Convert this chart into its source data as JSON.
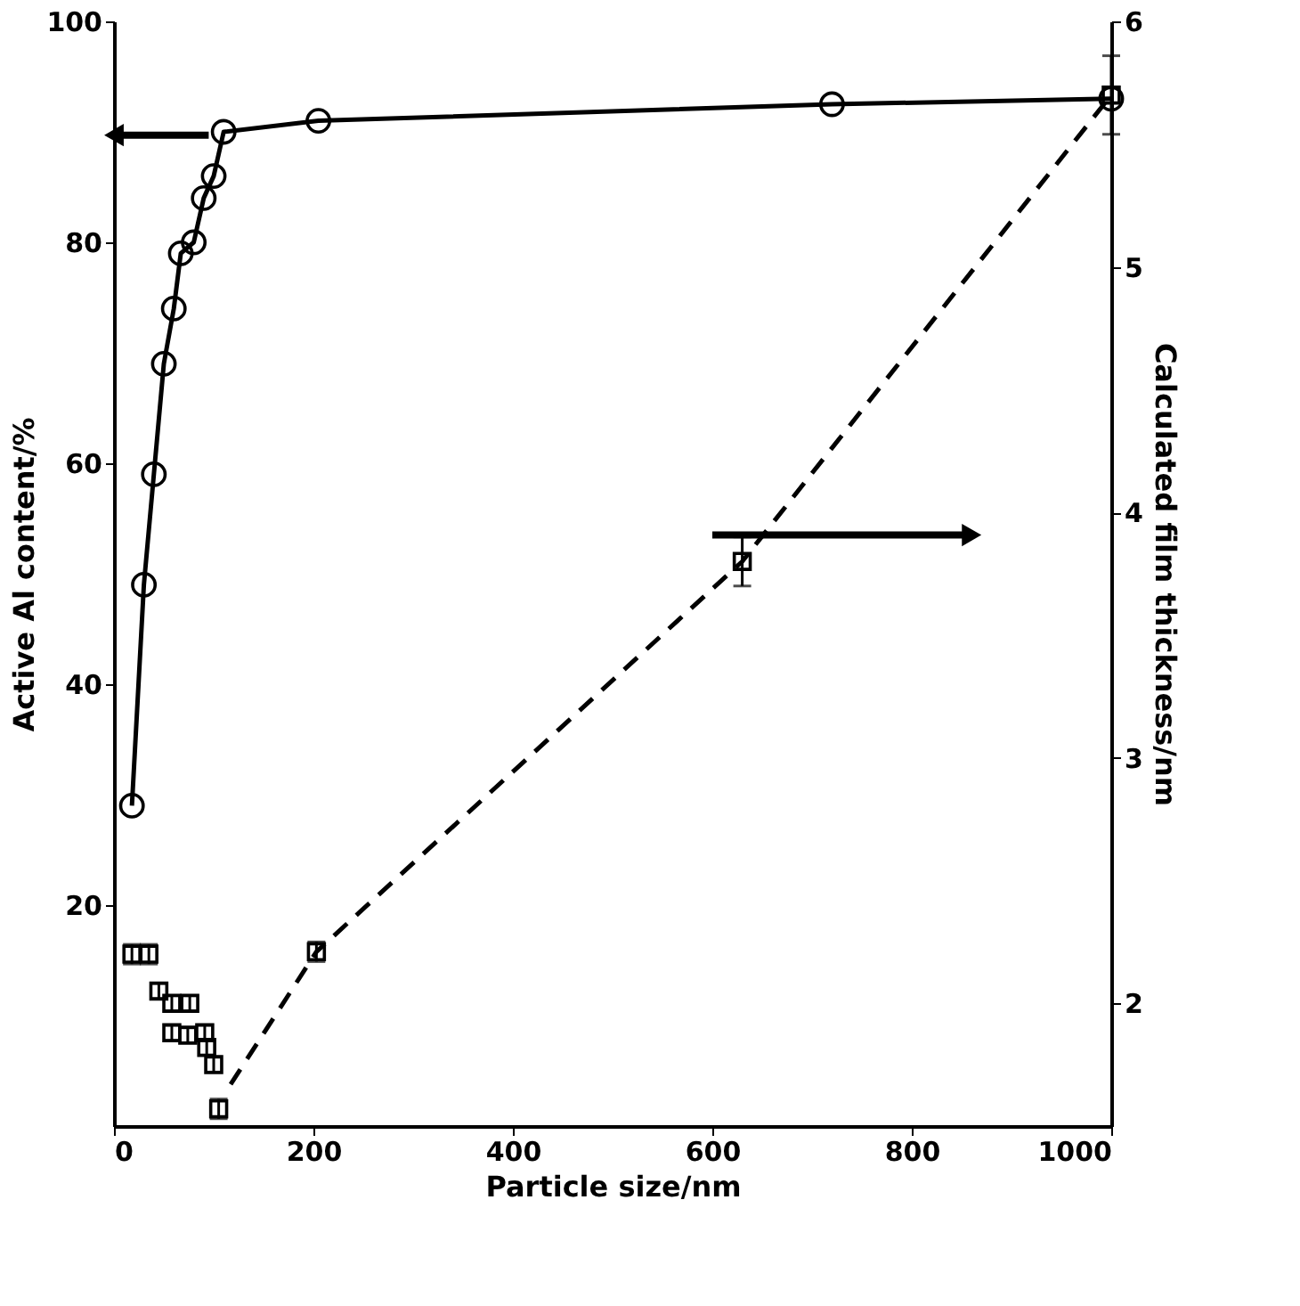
{
  "chart_data": {
    "type": "line",
    "xlabel": "Particle size/nm",
    "ylabel": "Active Al content/%",
    "y2label": "Calculated film thickness/nm",
    "xlim": [
      0,
      1000
    ],
    "xticks": [
      0,
      200,
      400,
      600,
      800,
      1000
    ],
    "ylim": [
      0,
      100
    ],
    "yticks": [
      20,
      40,
      60,
      80,
      100
    ],
    "y2lim": [
      1.5,
      6
    ],
    "y2ticks": [
      2,
      3,
      4,
      5,
      6
    ],
    "grid": false,
    "legend": false,
    "series": [
      {
        "color": "#000000",
        "marker": "circle",
        "line_style": "solid",
        "x": [
          18,
          30,
          40,
          50,
          60,
          67,
          80,
          90,
          100,
          110,
          205,
          720,
          1000
        ],
        "values": [
          29,
          49,
          59,
          69,
          74,
          79,
          80,
          84,
          86,
          90,
          91,
          92.5,
          93
        ]
      },
      {
        "type": "scatter",
        "axis": "y2",
        "color": "#000000",
        "marker": "square",
        "x": [
          18,
          35,
          45,
          58,
          76,
          58,
          74,
          91,
          93,
          100,
          105,
          203,
          630,
          1000
        ],
        "values": [
          2.2,
          2.2,
          2.05,
          2.0,
          2.0,
          1.88,
          1.87,
          1.88,
          1.82,
          1.75,
          1.57,
          2.21,
          3.8,
          5.7
        ],
        "errors": [
          0.04,
          0.04,
          0.03,
          0.03,
          0.03,
          0.03,
          0.03,
          0.03,
          0.03,
          0.03,
          0.04,
          0.04,
          0.1,
          0.16
        ]
      },
      {
        "type": "line",
        "axis": "y2",
        "color": "#000000",
        "marker": "none",
        "line_style": "dashed",
        "x": [
          117,
          203,
          630,
          1000
        ],
        "values": [
          1.67,
          2.21,
          3.8,
          5.7
        ]
      }
    ]
  }
}
